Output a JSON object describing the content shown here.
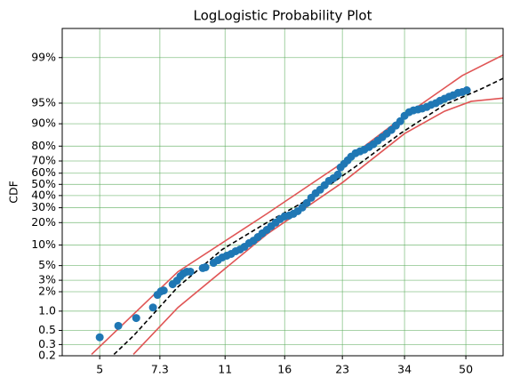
{
  "chart_data": {
    "type": "probability",
    "title": "LogLogistic Probability Plot",
    "y_label": "CDF",
    "xscale": "log",
    "yscale": "logit",
    "grid": true,
    "xlim": [
      3.95,
      63.2
    ],
    "ylim": [
      0.2,
      99.65
    ],
    "xticks": [
      5,
      7.3,
      11,
      16,
      23,
      34,
      50
    ],
    "yticks": [
      {
        "value": 0.2,
        "label": "0.2"
      },
      {
        "value": 0.3,
        "label": "0.3"
      },
      {
        "value": 0.5,
        "label": "0.5"
      },
      {
        "value": 1,
        "label": "1.0"
      },
      {
        "value": 2,
        "label": "2%"
      },
      {
        "value": 3,
        "label": "3%"
      },
      {
        "value": 5,
        "label": "5%"
      },
      {
        "value": 10,
        "label": "10%"
      },
      {
        "value": 20,
        "label": "20%"
      },
      {
        "value": 30,
        "label": "30%"
      },
      {
        "value": 40,
        "label": "40%"
      },
      {
        "value": 50,
        "label": "50%"
      },
      {
        "value": 60,
        "label": "60%"
      },
      {
        "value": 70,
        "label": "70%"
      },
      {
        "value": 80,
        "label": "80%"
      },
      {
        "value": 90,
        "label": "90%"
      },
      {
        "value": 95,
        "label": "95%"
      },
      {
        "value": 99,
        "label": "99%"
      }
    ],
    "series": [
      {
        "type": "scatter",
        "color": "#1f77b4",
        "x": [
          5,
          5.62,
          6.29,
          6.99,
          7.19,
          7.35,
          7.48,
          7.91,
          8.13,
          8.31,
          8.46,
          8.65,
          8.84,
          9.56,
          9.72,
          10.23,
          10.52,
          10.81,
          11.12,
          11.43,
          11.76,
          12.09,
          12.43,
          12.79,
          13.15,
          13.52,
          13.9,
          14.3,
          14.7,
          15.12,
          15.55,
          15.99,
          16.44,
          16.9,
          17.38,
          17.88,
          18.38,
          18.91,
          19.44,
          20.0,
          20.57,
          21.15,
          21.75,
          22.36,
          22.74,
          23.25,
          23.78,
          24.3,
          25.0,
          25.7,
          26.4,
          27.2,
          27.96,
          28.75,
          29.57,
          30.4,
          31.3,
          32.2,
          33.1,
          34.0,
          35.0,
          35.96,
          37.0,
          38.0,
          39.1,
          40.2,
          41.4,
          42.5,
          43.7,
          45.0,
          46.2,
          47.6,
          48.9,
          50.3
        ],
        "values": [
          0.39,
          0.59,
          0.78,
          1.14,
          1.79,
          2.03,
          2.09,
          2.61,
          2.96,
          3.46,
          3.8,
          4.05,
          4.05,
          4.59,
          4.72,
          5.5,
          6.02,
          6.6,
          7.01,
          7.45,
          8.14,
          8.64,
          9.43,
          10.6,
          11.5,
          12.9,
          14.5,
          16.1,
          18.0,
          20.0,
          22.1,
          23.8,
          24.4,
          25.6,
          27.5,
          30.2,
          33.7,
          38.1,
          42.0,
          45.2,
          49.2,
          53.2,
          55.6,
          58.8,
          64.9,
          67.8,
          70.5,
          73.2,
          75.6,
          76.8,
          77.9,
          79.5,
          81.1,
          83.0,
          84.7,
          86.3,
          87.8,
          89.4,
          90.8,
          92.3,
          93.2,
          93.6,
          93.8,
          94.0,
          94.3,
          94.7,
          95.0,
          95.4,
          95.7,
          96.0,
          96.2,
          96.5,
          96.6,
          96.8
        ]
      },
      {
        "type": "line",
        "dashed": true,
        "color": "#000000",
        "x": [
          5.47,
          6.18,
          8.18,
          10.81,
          14.3,
          18.91,
          25.0,
          33.1,
          43.7,
          54.7,
          63.2
        ],
        "values": [
          0.21,
          0.41,
          2.38,
          8.64,
          20.0,
          38.1,
          65.6,
          86.3,
          94.7,
          96.9,
          97.9
        ]
      },
      {
        "type": "line",
        "dashed": false,
        "color": "#e05555",
        "x": [
          4.75,
          8.18,
          14.3,
          23.0,
          34.0,
          48.9,
          63.2
        ],
        "values": [
          0.21,
          4.05,
          25.6,
          68.5,
          92.3,
          98.1,
          99.09
        ]
      },
      {
        "type": "line",
        "dashed": false,
        "color": "#e05555",
        "x": [
          6.18,
          8.18,
          14.3,
          23.0,
          34.0,
          43.7,
          51.7,
          63.2
        ],
        "values": [
          0.21,
          1.14,
          14.1,
          51.6,
          86.3,
          93.4,
          95.3,
          95.8
        ]
      }
    ]
  }
}
